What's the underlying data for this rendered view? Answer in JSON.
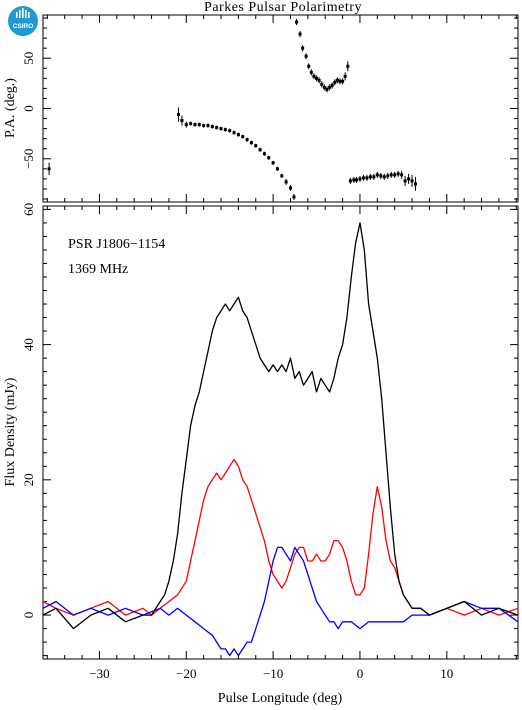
{
  "title": "Parkes Pulsar Polarimetry",
  "logo_text": "CSIRO",
  "chart_data": [
    {
      "type": "scatter",
      "panel": "position-angle",
      "ylabel": "P.A. (deg.)",
      "xlim": [
        -36.5,
        18.2
      ],
      "ylim": [
        -93,
        93
      ],
      "yticks": [
        -50,
        0,
        50
      ],
      "series": [
        {
          "x": [
            -35.8,
            -20.9,
            -20.5,
            -20.0,
            -19.5,
            -19.0,
            -18.5,
            -18.0,
            -17.5,
            -17.0,
            -16.5,
            -16.0,
            -15.5,
            -15.0,
            -14.5,
            -14.0,
            -13.5,
            -13.0,
            -12.5,
            -12.0,
            -11.5,
            -11.0,
            -10.5,
            -10.0,
            -9.5,
            -9.0,
            -8.5,
            -8.0,
            -7.6,
            -7.3,
            -6.9,
            -6.6,
            -6.2,
            -5.9,
            -5.6,
            -5.3,
            -5.0,
            -4.7,
            -4.4,
            -4.1,
            -3.8,
            -3.5,
            -3.2,
            -2.9,
            -2.6,
            -2.3,
            -2.0,
            -1.7,
            -1.4,
            -1.1,
            -0.7,
            -0.4,
            0.0,
            0.4,
            0.8,
            1.2,
            1.6,
            2.0,
            2.4,
            2.8,
            3.2,
            3.6,
            4.0,
            4.4,
            4.8,
            5.2,
            5.6,
            6.0,
            6.4
          ],
          "y": [
            -60,
            -6,
            -12,
            -16,
            -15,
            -16,
            -16,
            -17,
            -17,
            -18,
            -19,
            -20,
            -21,
            -22,
            -24,
            -26,
            -28,
            -31,
            -34,
            -37,
            -41,
            -45,
            -49,
            -54,
            -60,
            -67,
            -73,
            -79,
            -88,
            86,
            74,
            60,
            52,
            42,
            36,
            32,
            30,
            28,
            24,
            21,
            19,
            21,
            23,
            26,
            28,
            27,
            27,
            32,
            42,
            -72,
            -71,
            -71,
            -70,
            -69,
            -69,
            -68,
            -68,
            -66,
            -67,
            -68,
            -67,
            -66,
            -66,
            -65,
            -66,
            -72,
            -70,
            -72,
            -75
          ],
          "err": [
            6,
            7,
            5,
            3,
            2,
            2,
            2,
            2,
            2,
            2,
            2,
            2,
            2,
            2,
            2,
            2,
            2,
            2,
            2,
            2,
            2,
            2,
            2,
            2,
            2,
            2,
            3,
            3,
            3,
            3,
            3,
            3,
            3,
            3,
            3,
            3,
            3,
            3,
            3,
            3,
            3,
            3,
            3,
            3,
            3,
            3,
            3,
            4,
            5,
            3,
            3,
            3,
            3,
            3,
            3,
            3,
            3,
            3,
            3,
            3,
            3,
            3,
            3,
            3,
            4,
            5,
            5,
            6,
            7
          ]
        }
      ]
    },
    {
      "type": "line",
      "panel": "profile",
      "xlabel": "Pulse Longitude (deg)",
      "ylabel": "Flux Density (mJy)",
      "annotations": [
        "PSR J1806−1154",
        "1369 MHz"
      ],
      "xlim": [
        -36.5,
        18.2
      ],
      "ylim": [
        -6.5,
        60.5
      ],
      "xticks": [
        -30,
        -20,
        -10,
        0,
        10
      ],
      "yticks": [
        0,
        20,
        40,
        60
      ],
      "series": [
        {
          "color": "#000000",
          "x": [
            -36.5,
            -35,
            -33,
            -31,
            -29,
            -27,
            -25,
            -24,
            -23,
            -22.5,
            -22,
            -21.5,
            -21,
            -20.5,
            -20,
            -19.5,
            -19,
            -18.5,
            -18,
            -17.5,
            -17,
            -16.5,
            -16,
            -15.5,
            -15,
            -14.5,
            -14,
            -13.5,
            -13,
            -12.5,
            -12,
            -11.5,
            -11,
            -10.5,
            -10,
            -9.5,
            -9,
            -8.5,
            -8,
            -7.5,
            -7,
            -6.5,
            -6,
            -5.5,
            -5,
            -4.5,
            -4,
            -3.5,
            -3,
            -2.5,
            -2,
            -1.5,
            -1,
            -0.5,
            0,
            0.5,
            1,
            1.5,
            2,
            2.5,
            3,
            3.5,
            4,
            4.5,
            5,
            5.5,
            6,
            7,
            8,
            10,
            12,
            14,
            16,
            18.2
          ],
          "y": [
            0,
            1,
            -2,
            0,
            1,
            -1,
            0,
            0,
            2,
            3,
            5,
            8,
            12,
            18,
            23,
            28,
            31,
            33,
            36,
            39,
            42,
            44,
            45,
            46,
            45,
            46,
            47,
            45,
            44,
            42,
            40,
            38,
            37,
            36,
            37,
            36,
            37,
            36,
            38,
            35,
            36,
            34,
            35,
            36,
            33,
            35,
            34,
            33,
            35,
            38,
            40,
            44,
            50,
            55,
            58,
            54,
            46,
            42,
            38,
            32,
            24,
            16,
            9,
            5,
            3,
            2,
            1,
            1,
            0,
            1,
            2,
            0,
            1,
            0
          ]
        },
        {
          "color": "#ff0000",
          "x": [
            -36.5,
            -35,
            -33,
            -31,
            -29,
            -27,
            -25,
            -24,
            -23,
            -22,
            -21,
            -20,
            -19.5,
            -19,
            -18.5,
            -18,
            -17.5,
            -17,
            -16.5,
            -16,
            -15.5,
            -15,
            -14.5,
            -14,
            -13.5,
            -13,
            -12.5,
            -12,
            -11.5,
            -11,
            -10.5,
            -10,
            -9.5,
            -9,
            -8.5,
            -8,
            -7.5,
            -7,
            -6.5,
            -6,
            -5.5,
            -5,
            -4.5,
            -4,
            -3.5,
            -3,
            -2.5,
            -2,
            -1.5,
            -1,
            -0.5,
            0,
            0.5,
            1,
            1.5,
            2,
            2.5,
            3,
            3.5,
            4,
            4.5,
            5,
            5.5,
            6,
            7,
            8,
            10,
            12,
            14,
            16,
            18.2
          ],
          "y": [
            2,
            1,
            0,
            1,
            2,
            0,
            1,
            0,
            1,
            2,
            3,
            5,
            8,
            11,
            14,
            17,
            19,
            20,
            21,
            20,
            21,
            22,
            23,
            22,
            20,
            19,
            17,
            15,
            13,
            11,
            8,
            6,
            5,
            4,
            5,
            7,
            9,
            10,
            10,
            8,
            8,
            9,
            8,
            8,
            9,
            11,
            11,
            10,
            8,
            5,
            3,
            3,
            4,
            9,
            15,
            19,
            16,
            11,
            8,
            7,
            5,
            3,
            2,
            1,
            1,
            0,
            1,
            0,
            1,
            0,
            1
          ]
        },
        {
          "color": "#0000ff",
          "x": [
            -36.5,
            -35,
            -33,
            -31,
            -29,
            -27,
            -25,
            -23,
            -22,
            -21,
            -20,
            -19,
            -18,
            -17,
            -16.5,
            -16,
            -15.5,
            -15,
            -14.5,
            -14,
            -13.5,
            -13,
            -12.5,
            -12,
            -11.5,
            -11,
            -10.5,
            -10,
            -9.5,
            -9,
            -8.5,
            -8,
            -7.5,
            -7,
            -6.5,
            -6,
            -5.5,
            -5,
            -4.5,
            -4,
            -3.5,
            -3,
            -2.5,
            -2,
            -1,
            0,
            1,
            2,
            3,
            4,
            5,
            6,
            8,
            10,
            12,
            14,
            16,
            18.2
          ],
          "y": [
            1,
            2,
            0,
            1,
            0,
            1,
            0,
            1,
            0,
            1,
            0,
            -1,
            -2,
            -3,
            -4,
            -5,
            -5,
            -6,
            -5,
            -6,
            -5,
            -4,
            -4,
            -2,
            0,
            2,
            5,
            8,
            10,
            10,
            9,
            8,
            10,
            9,
            8,
            6,
            4,
            2,
            1,
            0,
            -1,
            -1,
            -2,
            -1,
            -1,
            -2,
            -1,
            -1,
            -1,
            -1,
            -1,
            0,
            0,
            1,
            2,
            1,
            1,
            -1
          ]
        }
      ]
    }
  ]
}
